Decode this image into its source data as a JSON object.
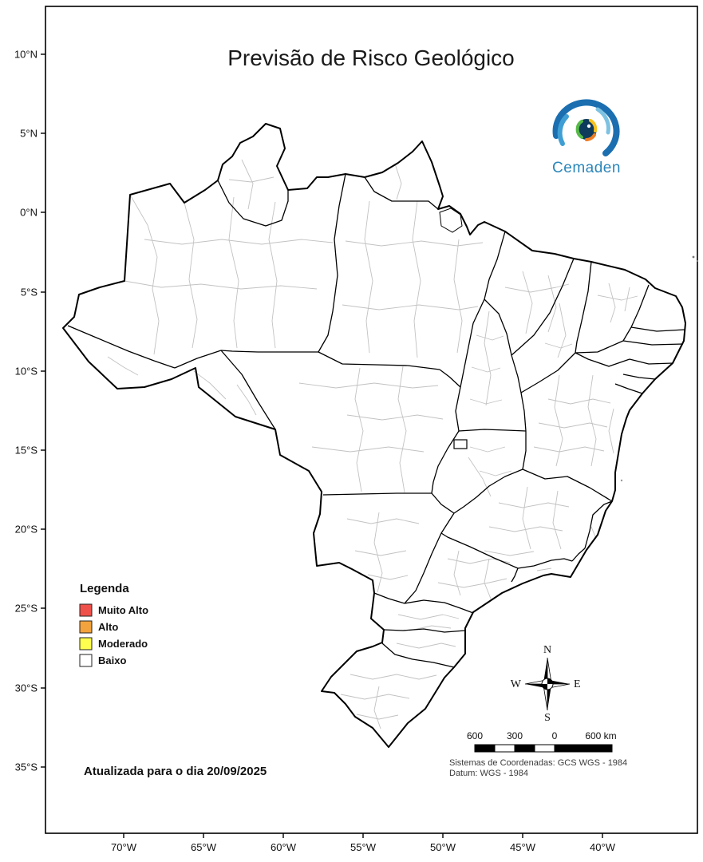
{
  "title": "Previsão de Risco Geológico",
  "logo": {
    "text": "Cemaden",
    "brand_color": "#2a86ba"
  },
  "legend": {
    "title": "Legenda",
    "items": [
      {
        "label": "Muito Alto",
        "color": "#f0504a"
      },
      {
        "label": "Alto",
        "color": "#f2a33d"
      },
      {
        "label": "Moderado",
        "color": "#ffff4f"
      },
      {
        "label": "Baixo",
        "color": "#ffffff"
      }
    ]
  },
  "update_note": "Atualizada para o dia 20/09/2025",
  "scale_bar": {
    "labels": [
      "600",
      "300",
      "0",
      "600 km"
    ]
  },
  "compass": {
    "n": "N",
    "s": "S",
    "e": "E",
    "w": "W"
  },
  "coordinate_system": {
    "line1": "Sistemas de Coordenadas: GCS WGS - 1984",
    "line2": "Datum: WGS - 1984"
  },
  "axes": {
    "lat": [
      "10°N",
      "5°N",
      "0°N",
      "5°S",
      "10°S",
      "15°S",
      "20°S",
      "25°S",
      "30°S",
      "35°S"
    ],
    "lon": [
      "70°W",
      "65°W",
      "60°W",
      "55°W",
      "50°W",
      "45°W",
      "40°W"
    ]
  },
  "map": {
    "fill_color": "#ffffff",
    "state_border_color": "#000000",
    "region_border_color": "#c2c2c2"
  }
}
